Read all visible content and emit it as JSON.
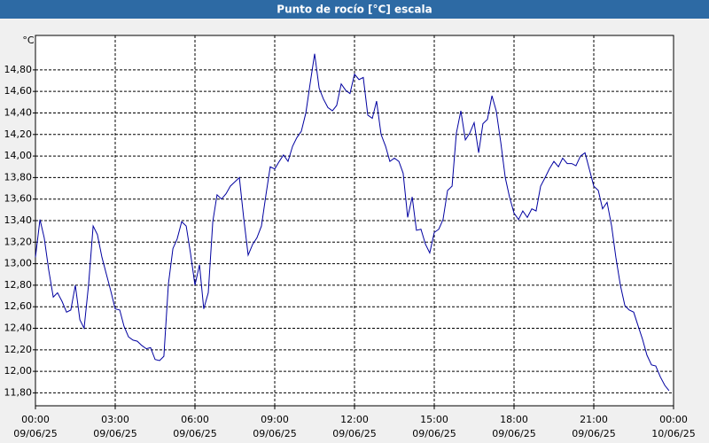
{
  "chart_data": {
    "type": "line",
    "title": "Punto de rocío [°C] escala",
    "y_unit": "°C",
    "x": [
      0,
      0.17,
      0.33,
      0.5,
      0.67,
      0.83,
      1,
      1.17,
      1.33,
      1.5,
      1.67,
      1.83,
      2,
      2.17,
      2.33,
      2.5,
      2.67,
      2.83,
      3,
      3.17,
      3.33,
      3.5,
      3.67,
      3.83,
      4,
      4.17,
      4.33,
      4.5,
      4.67,
      4.83,
      5,
      5.17,
      5.33,
      5.5,
      5.67,
      5.83,
      6,
      6.17,
      6.33,
      6.5,
      6.67,
      6.83,
      7,
      7.17,
      7.33,
      7.5,
      7.67,
      7.83,
      8,
      8.17,
      8.33,
      8.5,
      8.67,
      8.83,
      9,
      9.17,
      9.33,
      9.5,
      9.67,
      9.83,
      10,
      10.17,
      10.33,
      10.5,
      10.67,
      10.83,
      11,
      11.17,
      11.33,
      11.5,
      11.67,
      11.83,
      12,
      12.17,
      12.33,
      12.5,
      12.67,
      12.83,
      13,
      13.17,
      13.33,
      13.5,
      13.67,
      13.83,
      14,
      14.17,
      14.33,
      14.5,
      14.67,
      14.83,
      15,
      15.17,
      15.33,
      15.5,
      15.67,
      15.83,
      16,
      16.17,
      16.33,
      16.5,
      16.67,
      16.83,
      17,
      17.17,
      17.33,
      17.5,
      17.67,
      17.83,
      18,
      18.17,
      18.33,
      18.5,
      18.67,
      18.83,
      19,
      19.17,
      19.33,
      19.5,
      19.67,
      19.83,
      20,
      20.17,
      20.33,
      20.5,
      20.67,
      20.83,
      21,
      21.17,
      21.33,
      21.5,
      21.67,
      21.83,
      22,
      22.17,
      22.33,
      22.5,
      22.67,
      22.83,
      23,
      23.17,
      23.33,
      23.5,
      23.67,
      23.83
    ],
    "series": [
      {
        "name": "Punto de rocío",
        "color": "#0000a0",
        "values": [
          13.06,
          13.41,
          13.24,
          12.94,
          12.69,
          12.73,
          12.65,
          12.55,
          12.57,
          12.8,
          12.48,
          12.4,
          12.81,
          13.35,
          13.27,
          13.06,
          12.9,
          12.75,
          12.58,
          12.57,
          12.42,
          12.32,
          12.29,
          12.28,
          12.24,
          12.21,
          12.22,
          12.11,
          12.1,
          12.14,
          12.81,
          13.14,
          13.23,
          13.39,
          13.35,
          13.1,
          12.8,
          12.99,
          12.58,
          12.73,
          13.39,
          13.64,
          13.6,
          13.65,
          13.72,
          13.76,
          13.8,
          13.43,
          13.08,
          13.18,
          13.24,
          13.35,
          13.64,
          13.9,
          13.88,
          13.95,
          14.01,
          13.95,
          14.09,
          14.17,
          14.23,
          14.4,
          14.67,
          14.95,
          14.63,
          14.53,
          14.45,
          14.42,
          14.47,
          14.67,
          14.61,
          14.58,
          14.76,
          14.71,
          14.73,
          14.38,
          14.35,
          14.51,
          14.2,
          14.09,
          13.95,
          13.98,
          13.95,
          13.84,
          13.43,
          13.62,
          13.31,
          13.32,
          13.18,
          13.1,
          13.29,
          13.32,
          13.41,
          13.68,
          13.72,
          14.21,
          14.42,
          14.15,
          14.21,
          14.31,
          14.03,
          14.3,
          14.34,
          14.56,
          14.42,
          14.13,
          13.8,
          13.62,
          13.47,
          13.41,
          13.49,
          13.43,
          13.51,
          13.49,
          13.72,
          13.8,
          13.88,
          13.95,
          13.9,
          13.98,
          13.93,
          13.93,
          13.91,
          14,
          14.03,
          13.88,
          13.72,
          13.68,
          13.51,
          13.57,
          13.35,
          13.06,
          12.8,
          12.61,
          12.57,
          12.55,
          12.42,
          12.3,
          12.15,
          12.06,
          12.05,
          11.95,
          11.87,
          11.82
        ]
      }
    ],
    "xlim": [
      0,
      24
    ],
    "xticks": [
      {
        "value": 0,
        "label": "00:00",
        "date": "09/06/25"
      },
      {
        "value": 3,
        "label": "03:00",
        "date": "09/06/25"
      },
      {
        "value": 6,
        "label": "06:00",
        "date": "09/06/25"
      },
      {
        "value": 9,
        "label": "09:00",
        "date": "09/06/25"
      },
      {
        "value": 12,
        "label": "12:00",
        "date": "09/06/25"
      },
      {
        "value": 15,
        "label": "15:00",
        "date": "09/06/25"
      },
      {
        "value": 18,
        "label": "18:00",
        "date": "09/06/25"
      },
      {
        "value": 21,
        "label": "21:00",
        "date": "09/06/25"
      },
      {
        "value": 24,
        "label": "00:00",
        "date": "10/06/25"
      }
    ],
    "ylim": [
      11.68,
      15.12
    ],
    "yticks": [
      {
        "value": 11.8,
        "label": "11,80"
      },
      {
        "value": 12,
        "label": "12,00"
      },
      {
        "value": 12.2,
        "label": "12,20"
      },
      {
        "value": 12.4,
        "label": "12,40"
      },
      {
        "value": 12.6,
        "label": "12,60"
      },
      {
        "value": 12.8,
        "label": "12,80"
      },
      {
        "value": 13,
        "label": "13,00"
      },
      {
        "value": 13.2,
        "label": "13,20"
      },
      {
        "value": 13.4,
        "label": "13,40"
      },
      {
        "value": 13.6,
        "label": "13,60"
      },
      {
        "value": 13.8,
        "label": "13,80"
      },
      {
        "value": 14,
        "label": "14,00"
      },
      {
        "value": 14.2,
        "label": "14,20"
      },
      {
        "value": 14.4,
        "label": "14,40"
      },
      {
        "value": 14.6,
        "label": "14,60"
      },
      {
        "value": 14.8,
        "label": "14,80"
      }
    ],
    "grid": true
  }
}
